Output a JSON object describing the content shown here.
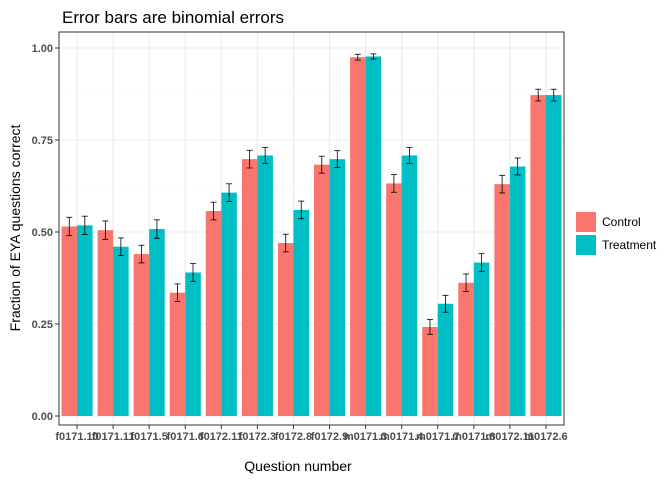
{
  "chart_data": {
    "type": "bar",
    "title": "Error bars are binomial errors",
    "xlabel": "Question number",
    "ylabel": "Fraction of EYA questions correct",
    "ylim": [
      0,
      1.05
    ],
    "yticks": [
      "0.00",
      "0.25",
      "0.50",
      "0.75",
      "1.00"
    ],
    "ytick_values": [
      0,
      0.25,
      0.5,
      0.75,
      1.0
    ],
    "grid": true,
    "legend_position": "right",
    "categories": [
      "f0171.10",
      "f0171.11",
      "f0171.5",
      "f0171.6",
      "f0172.11",
      "f0172.3",
      "f0172.8",
      "f0172.9",
      "m0171.3",
      "m0171.4",
      "m0171.7",
      "m0171.8",
      "m0172.11",
      "m0172.6"
    ],
    "series": [
      {
        "name": "Control",
        "color": "#F8766D",
        "values": [
          0.515,
          0.505,
          0.44,
          0.335,
          0.557,
          0.698,
          0.47,
          0.683,
          0.975,
          0.632,
          0.242,
          0.362,
          0.63,
          0.872
        ],
        "errors": [
          0.025,
          0.025,
          0.024,
          0.024,
          0.024,
          0.024,
          0.024,
          0.023,
          0.008,
          0.024,
          0.02,
          0.024,
          0.024,
          0.016
        ]
      },
      {
        "name": "Treatment",
        "color": "#00BFC4",
        "values": [
          0.518,
          0.46,
          0.508,
          0.39,
          0.607,
          0.708,
          0.56,
          0.698,
          0.977,
          0.708,
          0.305,
          0.417,
          0.678,
          0.872
        ],
        "errors": [
          0.025,
          0.024,
          0.025,
          0.024,
          0.024,
          0.022,
          0.024,
          0.023,
          0.007,
          0.022,
          0.023,
          0.024,
          0.023,
          0.016
        ]
      }
    ]
  }
}
